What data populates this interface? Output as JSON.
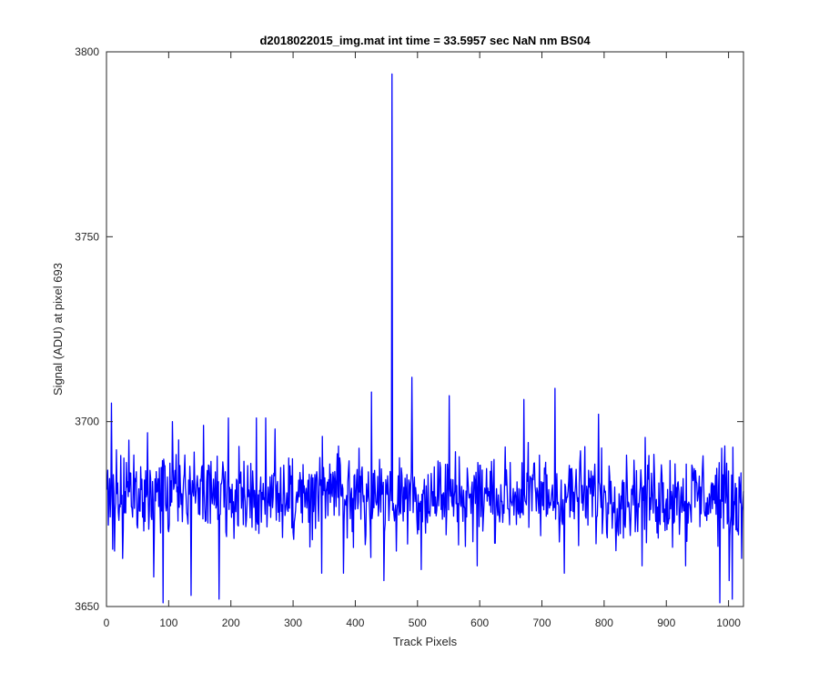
{
  "chart_data": {
    "type": "line",
    "title": "d2018022015_img.mat int time = 33.5957 sec  NaN nm BS04",
    "xlabel": "Track Pixels",
    "ylabel": "Signal (ADU) at pixel 693",
    "xlim": [
      0,
      1024
    ],
    "ylim": [
      3650,
      3800
    ],
    "xticks": [
      0,
      100,
      200,
      300,
      400,
      500,
      600,
      700,
      800,
      900,
      1000
    ],
    "yticks": [
      3650,
      3700,
      3750,
      3800
    ],
    "xtick_labels": [
      "0",
      "100",
      "200",
      "300",
      "400",
      "500",
      "600",
      "700",
      "800",
      "900",
      "1000"
    ],
    "ytick_labels": [
      "3650",
      "3700",
      "3750",
      "3800"
    ],
    "grid": false,
    "line_color": "#0000ff",
    "n_points": 1024,
    "baseline": 3680,
    "noise_range": [
      3661,
      3696
    ],
    "notable_points": [
      {
        "x": 2,
        "y": 3672
      },
      {
        "x": 7,
        "y": 3705
      },
      {
        "x": 12,
        "y": 3665
      },
      {
        "x": 25,
        "y": 3663
      },
      {
        "x": 35,
        "y": 3695
      },
      {
        "x": 65,
        "y": 3697
      },
      {
        "x": 75,
        "y": 3658
      },
      {
        "x": 90,
        "y": 3651
      },
      {
        "x": 105,
        "y": 3700
      },
      {
        "x": 135,
        "y": 3653
      },
      {
        "x": 155,
        "y": 3699
      },
      {
        "x": 180,
        "y": 3652
      },
      {
        "x": 195,
        "y": 3701
      },
      {
        "x": 240,
        "y": 3701
      },
      {
        "x": 255,
        "y": 3701
      },
      {
        "x": 270,
        "y": 3698
      },
      {
        "x": 345,
        "y": 3659
      },
      {
        "x": 380,
        "y": 3659
      },
      {
        "x": 425,
        "y": 3708
      },
      {
        "x": 445,
        "y": 3657
      },
      {
        "x": 458,
        "y": 3794
      },
      {
        "x": 465,
        "y": 3665
      },
      {
        "x": 490,
        "y": 3712
      },
      {
        "x": 505,
        "y": 3660
      },
      {
        "x": 550,
        "y": 3707
      },
      {
        "x": 595,
        "y": 3661
      },
      {
        "x": 670,
        "y": 3706
      },
      {
        "x": 720,
        "y": 3709
      },
      {
        "x": 735,
        "y": 3659
      },
      {
        "x": 790,
        "y": 3702
      },
      {
        "x": 860,
        "y": 3661
      },
      {
        "x": 930,
        "y": 3661
      },
      {
        "x": 985,
        "y": 3651
      },
      {
        "x": 1000,
        "y": 3657
      },
      {
        "x": 1005,
        "y": 3652
      },
      {
        "x": 1020,
        "y": 3663
      }
    ]
  }
}
